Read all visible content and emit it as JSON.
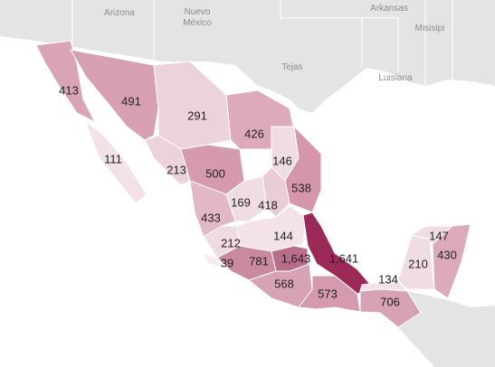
{
  "map": {
    "background_labels": [
      "Arizona",
      "Nuevo\nMéxico",
      "Tejas",
      "Arkansas",
      "Misisipi",
      "Luisiana"
    ],
    "regions": [
      {
        "label": "413",
        "color": "#d9a5b5"
      },
      {
        "label": "491",
        "color": "#d6a0b2"
      },
      {
        "label": "291",
        "color": "#ecd3db"
      },
      {
        "label": "426",
        "color": "#dcaabb"
      },
      {
        "label": "111",
        "color": "#f2e1e6"
      },
      {
        "label": "146",
        "color": "#f0dde3"
      },
      {
        "label": "213",
        "color": "#ecd3db"
      },
      {
        "label": "500",
        "color": "#d59aae"
      },
      {
        "label": "538",
        "color": "#d596aa"
      },
      {
        "label": "169",
        "color": "#f0dde3"
      },
      {
        "label": "418",
        "color": "#e9ccd6"
      },
      {
        "label": "433",
        "color": "#e2b8c6"
      },
      {
        "label": "212",
        "color": "#efdbe1"
      },
      {
        "label": "144",
        "color": "#f3e3e8"
      },
      {
        "label": "147",
        "color": "#f0dde3"
      },
      {
        "label": "430",
        "color": "#dcaabb"
      },
      {
        "label": "39",
        "color": "#f6ecef"
      },
      {
        "label": "781",
        "color": "#c98a9f"
      },
      {
        "label": "1,643",
        "color": "#b86e8a"
      },
      {
        "label": "1,641",
        "color": "#9c2a58"
      },
      {
        "label": "210",
        "color": "#f0dde3"
      },
      {
        "label": "134",
        "color": "#f2e1e6"
      },
      {
        "label": "568",
        "color": "#d7a3b4"
      },
      {
        "label": "573",
        "color": "#d59aae"
      },
      {
        "label": "706",
        "color": "#d7a3b4"
      }
    ]
  }
}
